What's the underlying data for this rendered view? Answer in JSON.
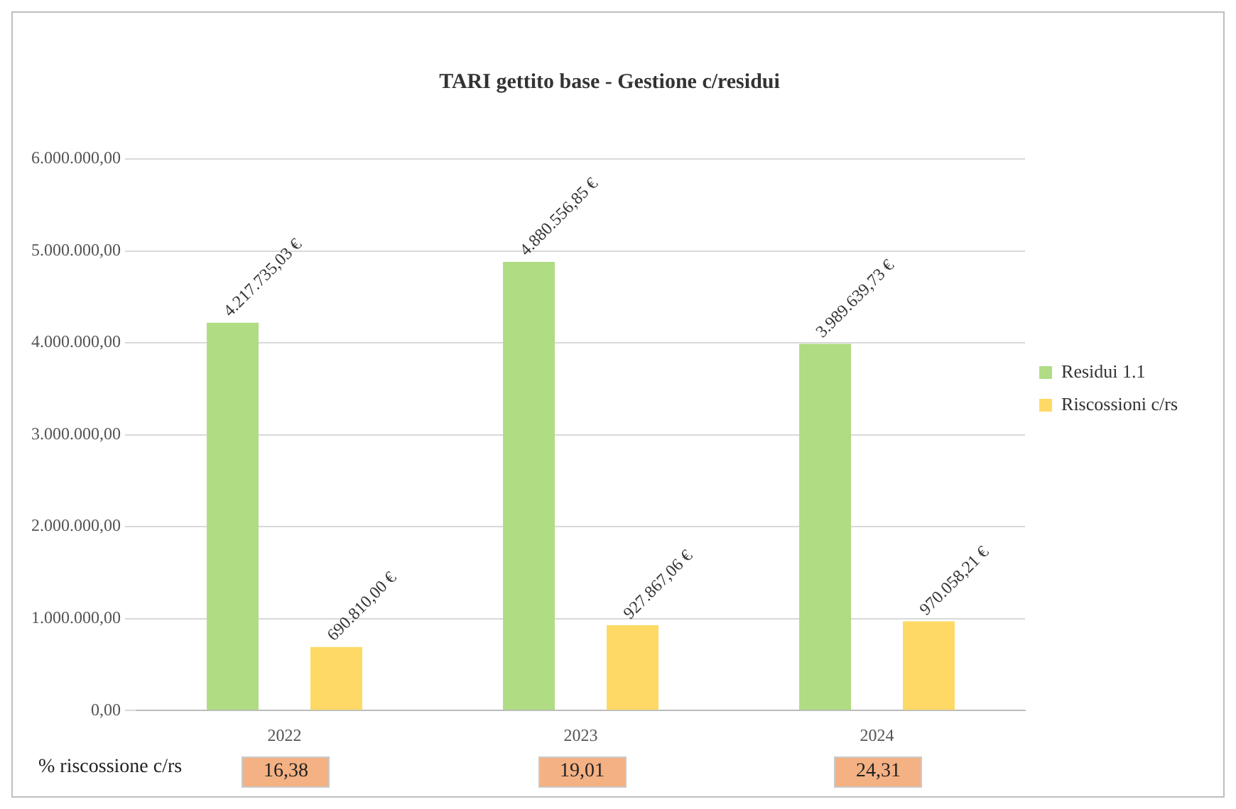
{
  "chart_data": {
    "type": "bar",
    "title": "TARI gettito base - Gestione c/residui",
    "categories": [
      "2022",
      "2023",
      "2024"
    ],
    "series": [
      {
        "name": "Residui 1.1",
        "color": "#b0dc84",
        "values": [
          4217735.03,
          4880556.85,
          3989639.73
        ],
        "value_labels": [
          "4.217.735,03 €",
          "4.880.556,85 €",
          "3.989.639,73 €"
        ]
      },
      {
        "name": "Riscossioni c/rs",
        "color": "#ffd966",
        "values": [
          690810.0,
          927867.06,
          970058.21
        ],
        "value_labels": [
          "690.810,00 €",
          "927.867,06 €",
          "970.058,21 €"
        ]
      }
    ],
    "ylim": [
      0,
      6000000
    ],
    "yticks": [
      {
        "value": 0,
        "label": "0,00"
      },
      {
        "value": 1000000,
        "label": "1.000.000,00"
      },
      {
        "value": 2000000,
        "label": "2.000.000,00"
      },
      {
        "value": 3000000,
        "label": "3.000.000,00"
      },
      {
        "value": 4000000,
        "label": "4.000.000,00"
      },
      {
        "value": 5000000,
        "label": "5.000.000,00"
      },
      {
        "value": 6000000,
        "label": "6.000.000,00"
      }
    ],
    "grid": "y",
    "legend": "right",
    "annotations": [
      "% riscossione c/rs",
      "16,38",
      "19,01",
      "24,31"
    ]
  }
}
